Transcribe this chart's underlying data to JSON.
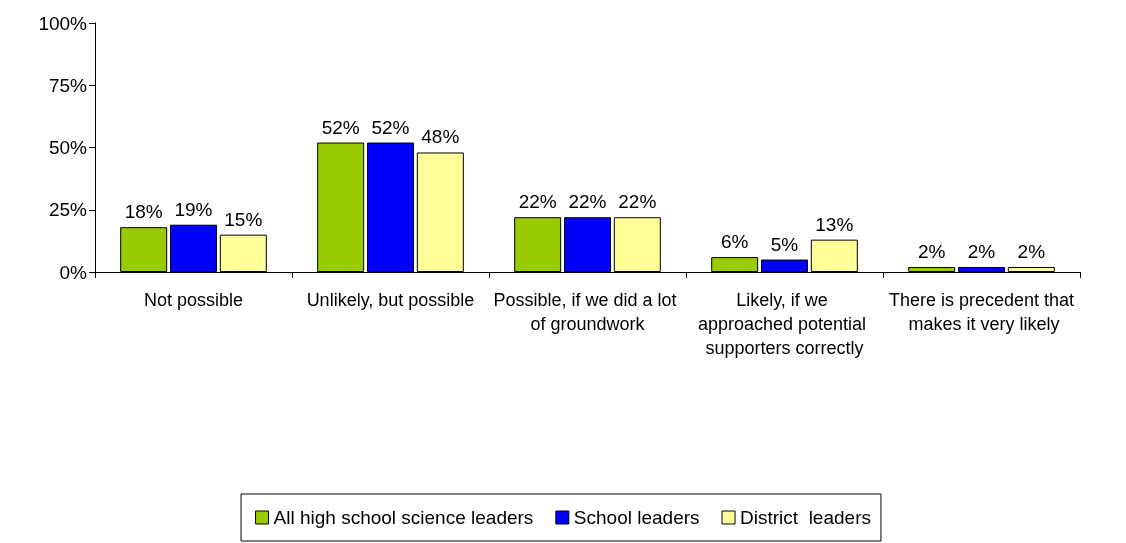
{
  "chart_data": {
    "type": "bar",
    "categories": [
      "Not possible",
      "Unlikely, but possible",
      "Possible, if we did a lot of groundwork",
      "Likely, if we approached potential supporters correctly",
      "There is precedent that makes it very likely"
    ],
    "series": [
      {
        "name": "All high school science leaders",
        "color": "#99cc00",
        "values": [
          18,
          52,
          22,
          6,
          2
        ],
        "value_labels": [
          "18%",
          "52%",
          "22%",
          "6%",
          "2%"
        ]
      },
      {
        "name": "School leaders",
        "color": "#0000ff",
        "values": [
          19,
          52,
          22,
          5,
          2
        ],
        "value_labels": [
          "19%",
          "52%",
          "22%",
          "5%",
          "2%"
        ]
      },
      {
        "name": "District  leaders",
        "color": "#ffff99",
        "values": [
          15,
          48,
          22,
          13,
          2
        ],
        "value_labels": [
          "15%",
          "48%",
          "22%",
          "13%",
          "2%"
        ]
      }
    ],
    "ylim": [
      0,
      100
    ],
    "yticks": [
      {
        "value": 0,
        "label": "0%"
      },
      {
        "value": 25,
        "label": "25%"
      },
      {
        "value": 50,
        "label": "50%"
      },
      {
        "value": 75,
        "label": "75%"
      },
      {
        "value": 100,
        "label": "100%"
      }
    ],
    "grid": false,
    "legend": "bottom"
  }
}
